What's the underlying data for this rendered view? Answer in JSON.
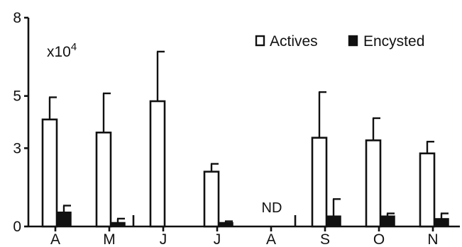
{
  "chart_data": {
    "type": "bar",
    "categories": [
      "A",
      "M",
      "J",
      "J",
      "A",
      "S",
      "O",
      "N"
    ],
    "series": [
      {
        "name": "Actives",
        "values": [
          4.1,
          3.6,
          4.8,
          2.1,
          null,
          3.4,
          3.3,
          2.8
        ],
        "errors": [
          0.85,
          1.5,
          1.9,
          0.3,
          null,
          1.75,
          0.85,
          0.45
        ],
        "color": "#ffffff"
      },
      {
        "name": "Encysted",
        "values": [
          0.55,
          0.15,
          null,
          0.15,
          null,
          0.4,
          0.4,
          0.3
        ],
        "errors": [
          0.25,
          0.15,
          null,
          0.05,
          null,
          0.65,
          0.1,
          0.2
        ],
        "color": "#111111"
      }
    ],
    "y_ticks": [
      "0",
      "3",
      "5",
      "8"
    ],
    "ylim": [
      0,
      8
    ],
    "multiplier_label": "x10",
    "multiplier_exponent": "4",
    "na_label": "ND",
    "legend_position": "top-right",
    "axis_breaks_after": [
      "M",
      "A"
    ],
    "grid": false
  }
}
